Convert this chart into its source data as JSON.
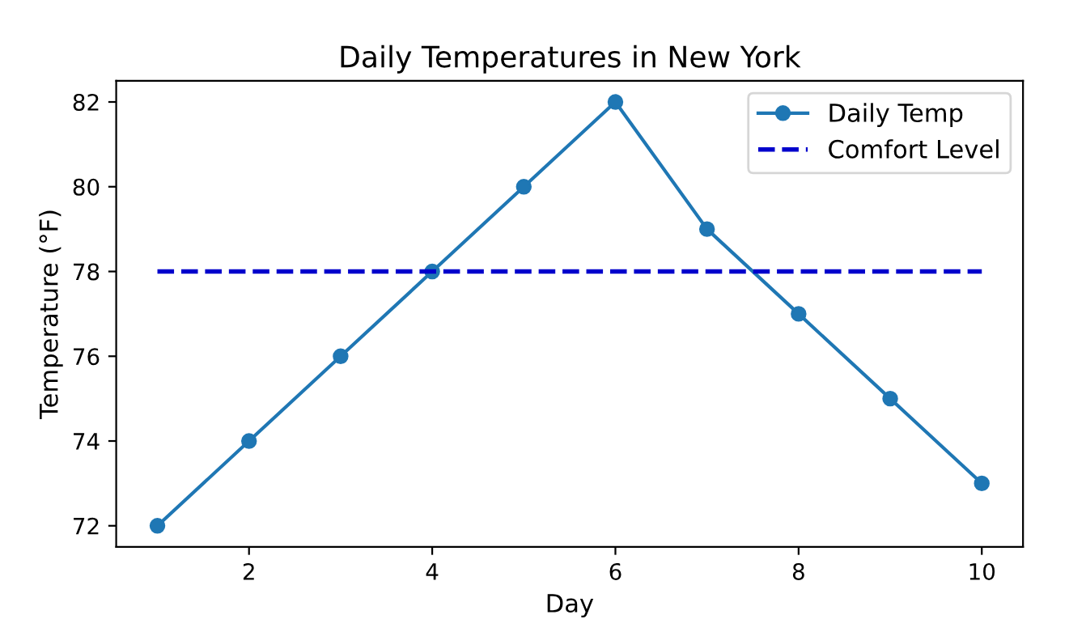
{
  "chart_data": {
    "type": "line",
    "title": "Daily Temperatures in New York",
    "xlabel": "Day",
    "ylabel": "Temperature (°F)",
    "x": [
      1,
      2,
      3,
      4,
      5,
      6,
      7,
      8,
      9,
      10
    ],
    "series": [
      {
        "name": "Daily Temp",
        "color": "#1f77b4",
        "values": [
          72,
          74,
          76,
          78,
          80,
          82,
          79,
          77,
          75,
          73
        ],
        "marker": "circle",
        "line_style": "solid"
      },
      {
        "name": "Comfort Level",
        "color": "#0000cc",
        "x": [
          1,
          10
        ],
        "values": [
          78,
          78
        ],
        "marker": "none",
        "line_style": "dashed"
      }
    ],
    "xlim": [
      0.55,
      10.45
    ],
    "ylim": [
      71.5,
      82.5
    ],
    "xticks": [
      2,
      4,
      6,
      8,
      10
    ],
    "yticks": [
      72,
      74,
      76,
      78,
      80,
      82
    ],
    "legend": "top right",
    "grid": false
  }
}
